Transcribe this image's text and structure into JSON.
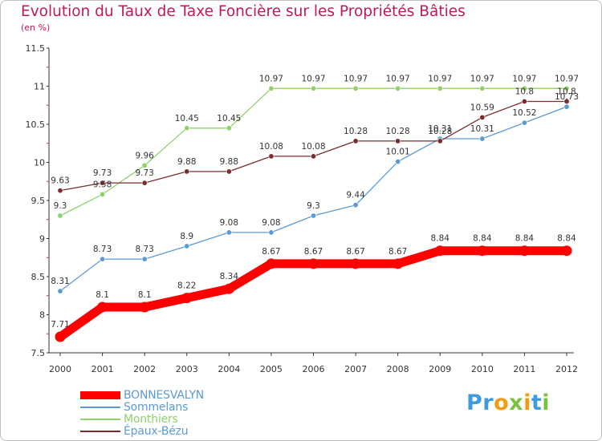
{
  "header": {
    "title": "Evolution du Taux de Taxe Foncière sur les Propriétés Bâties",
    "unit": "(en %)"
  },
  "logo": {
    "text": "Proxiti"
  },
  "chart_data": {
    "type": "line",
    "title": "Evolution du Taux de Taxe Foncière sur les Propriétés Bâties",
    "ylabel": "(en %)",
    "xlabel": "",
    "ylim": [
      7.5,
      11.5
    ],
    "yticks": [
      "7.5",
      "8",
      "8.5",
      "9",
      "9.5",
      "10",
      "10.5",
      "11",
      "11.5"
    ],
    "grid": false,
    "legend_position": "bottom-left",
    "x": [
      "2000",
      "2001",
      "2002",
      "2003",
      "2004",
      "2005",
      "2006",
      "2007",
      "2008",
      "2009",
      "2010",
      "2011",
      "2012"
    ],
    "series": [
      {
        "name": "BONNESVALYN",
        "color": "#ff0000",
        "values": [
          7.71,
          8.1,
          8.1,
          8.22,
          8.34,
          8.67,
          8.67,
          8.67,
          8.67,
          8.84,
          8.84,
          8.84,
          8.84
        ],
        "labels": [
          "7.71",
          "8.1",
          "8.1",
          "8.22",
          "8.34",
          "8.67",
          "8.67",
          "8.67",
          "8.67",
          "8.84",
          "8.84",
          "8.84",
          "8.84"
        ]
      },
      {
        "name": "Sommelans",
        "color": "#5b9bd5",
        "values": [
          8.31,
          8.73,
          8.73,
          8.9,
          9.08,
          9.08,
          9.3,
          9.44,
          10.01,
          10.31,
          10.31,
          10.52,
          10.73
        ],
        "labels": [
          "8.31",
          "8.73",
          "8.73",
          "8.9",
          "9.08",
          "9.08",
          "9.3",
          "9.44",
          "10.01",
          "10.31",
          "10.31",
          "10.52",
          "10.73"
        ]
      },
      {
        "name": "Monthiers",
        "color": "#8fd16a",
        "values": [
          9.3,
          9.58,
          9.96,
          10.45,
          10.45,
          10.97,
          10.97,
          10.97,
          10.97,
          10.97,
          10.97,
          10.97,
          10.97
        ],
        "labels": [
          "9.3",
          "9.58",
          "9.96",
          "10.45",
          "10.45",
          "10.97",
          "10.97",
          "10.97",
          "10.97",
          "10.97",
          "10.97",
          "10.97",
          "10.97"
        ]
      },
      {
        "name": "Épaux-Bézu",
        "color": "#7b2d2d",
        "values": [
          9.63,
          9.73,
          9.73,
          9.88,
          9.88,
          10.08,
          10.08,
          10.28,
          10.28,
          10.28,
          10.59,
          10.8,
          10.8
        ],
        "labels": [
          "9.63",
          "9.73",
          "9.73",
          "9.88",
          "9.88",
          "10.08",
          "10.08",
          "10.28",
          "10.28",
          "10.28",
          "10.59",
          "10.8",
          "10.8"
        ]
      }
    ]
  }
}
